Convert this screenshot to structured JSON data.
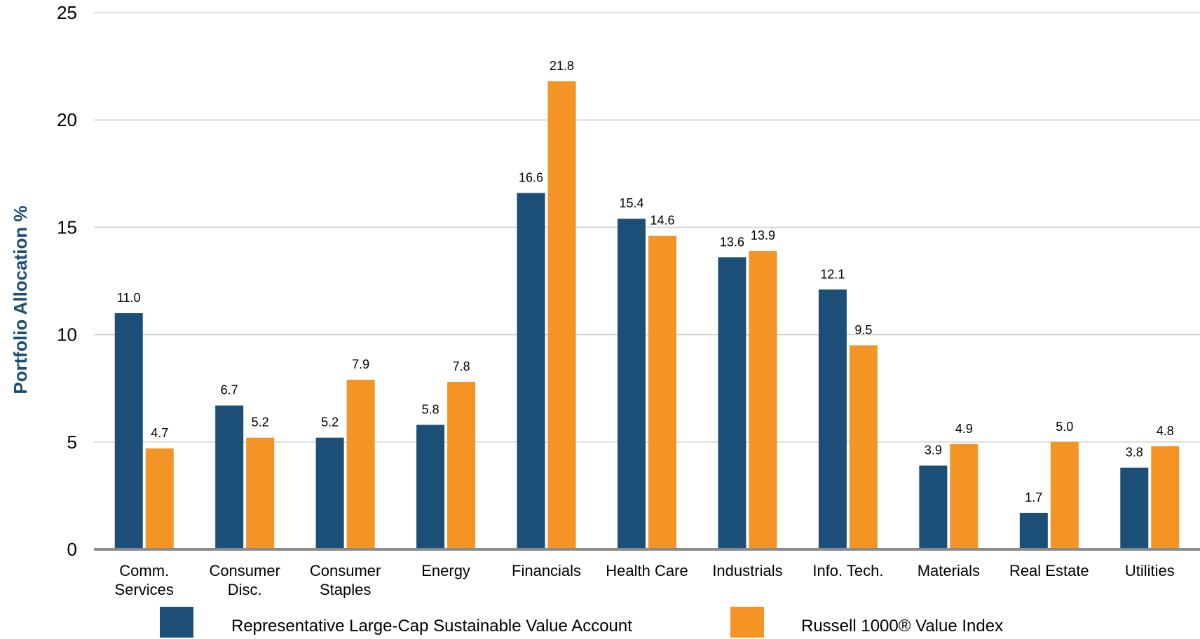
{
  "chart_data": {
    "type": "bar",
    "ylabel": "Portfolio Allocation %",
    "ylim": [
      0,
      25
    ],
    "yticks": [
      0,
      5,
      10,
      15,
      20,
      25
    ],
    "grid": true,
    "legend_position": "bottom",
    "categories": [
      [
        "Comm.",
        "Services"
      ],
      [
        "Consumer",
        "Disc."
      ],
      [
        "Consumer",
        "Staples"
      ],
      [
        "Energy"
      ],
      [
        "Financials"
      ],
      [
        "Health Care"
      ],
      [
        "Industrials"
      ],
      [
        "Info. Tech."
      ],
      [
        "Materials"
      ],
      [
        "Real Estate"
      ],
      [
        "Utilities"
      ]
    ],
    "series": [
      {
        "name": "Representative Large-Cap Sustainable Value Account",
        "color": "#1b4f78",
        "values": [
          11.0,
          6.7,
          5.2,
          5.8,
          16.6,
          15.4,
          13.6,
          12.1,
          3.9,
          1.7,
          3.8
        ]
      },
      {
        "name": "Russell 1000® Value Index",
        "color": "#f39424",
        "values": [
          4.7,
          5.2,
          7.9,
          7.8,
          21.8,
          14.6,
          13.9,
          9.5,
          4.9,
          5.0,
          4.8
        ]
      }
    ],
    "axis_color": "#8a8a8a",
    "grid_color": "#d0d0d0",
    "ylabel_color": "#1b4f78"
  }
}
